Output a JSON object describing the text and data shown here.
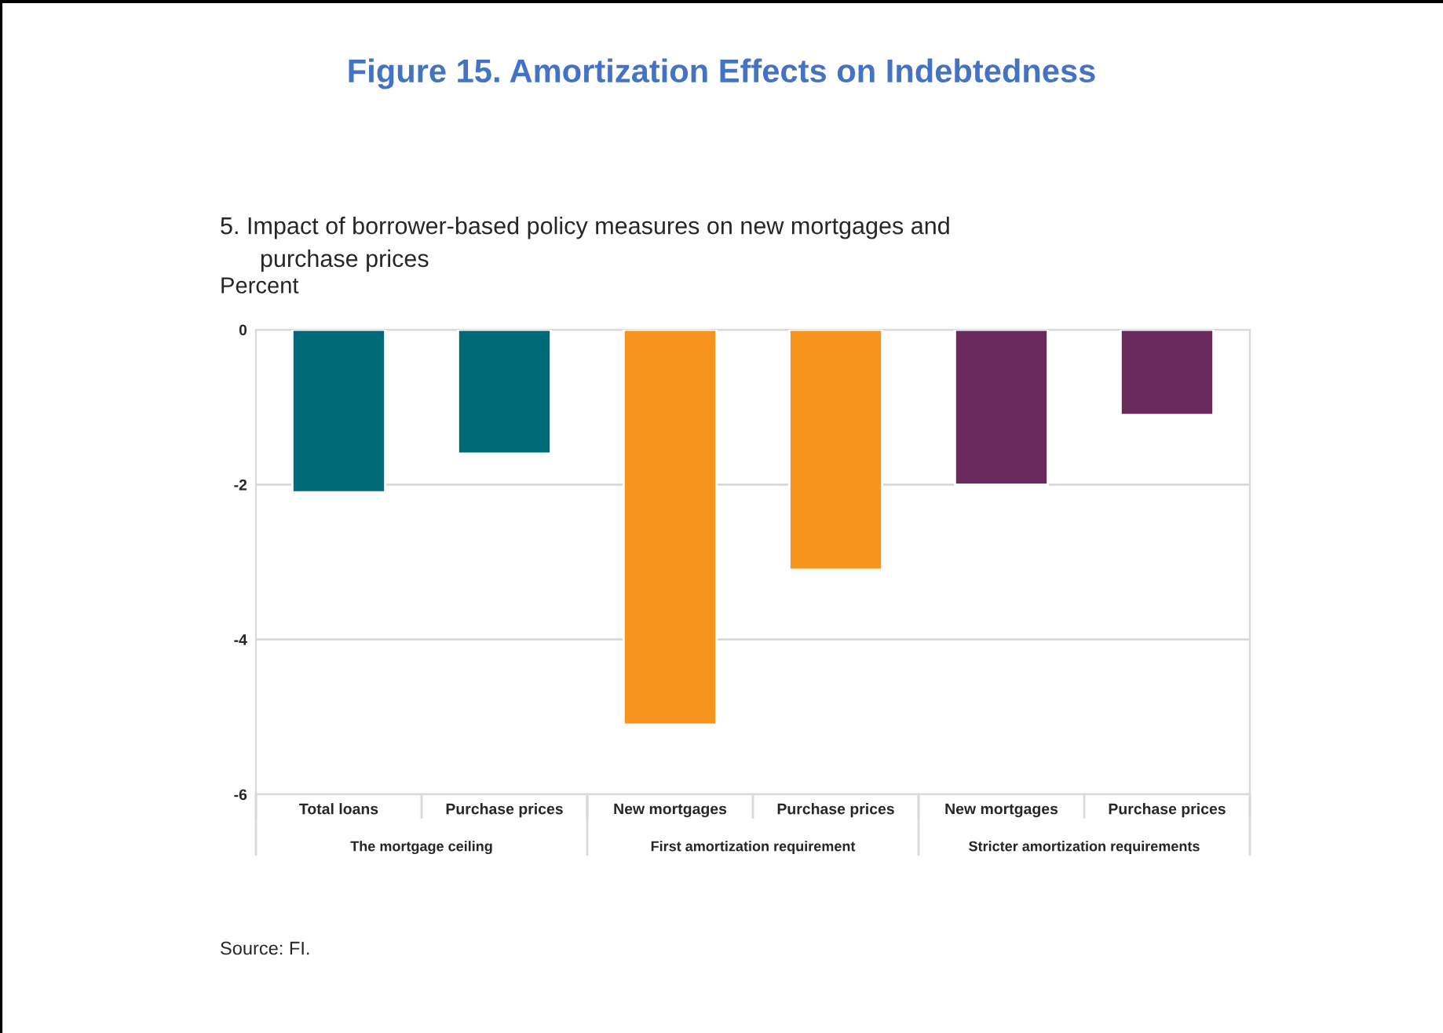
{
  "chart_data": {
    "type": "bar",
    "title": "Figure 15. Amortization Effects on Indebtedness",
    "subtitle": "5. Impact of borrower-based policy measures on new mortgages and\n      purchase prices",
    "ylabel": "Percent",
    "categories": [
      "Total loans",
      "Purchase prices",
      "New mortgages",
      "Purchase prices",
      "New mortgages",
      "Purchase prices"
    ],
    "values": [
      -2.1,
      -1.6,
      -5.1,
      -3.1,
      -2.0,
      -1.1
    ],
    "colors": [
      "#006a78",
      "#006a78",
      "#f7941d",
      "#f7941d",
      "#6b2a5e",
      "#6b2a5e"
    ],
    "ylim": [
      -6,
      0
    ],
    "yticks": [
      -6,
      -4,
      -2,
      0
    ],
    "grid": "y",
    "annotations": [
      "The mortgage ceiling",
      "First amortization requirement",
      "Stricter amortization requirements",
      "Source: FI."
    ]
  }
}
